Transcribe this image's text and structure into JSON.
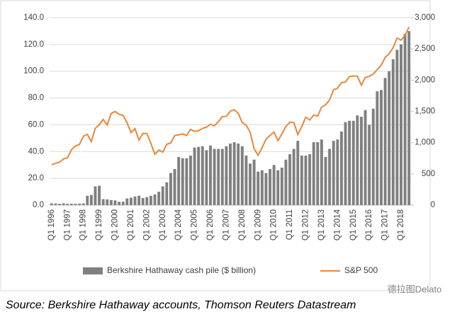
{
  "chart_data": {
    "type": "bar-line",
    "categories": [
      "Q1 1996",
      null,
      null,
      null,
      "Q1 1997",
      null,
      null,
      null,
      "Q1 1998",
      null,
      null,
      null,
      "Q1 1999",
      null,
      null,
      null,
      "Q1 2000",
      null,
      null,
      null,
      "Q1 2001",
      null,
      null,
      null,
      "Q1 2002",
      null,
      null,
      null,
      "Q1 2003",
      null,
      null,
      null,
      "Q1 2004",
      null,
      null,
      null,
      "Q1 2005",
      null,
      null,
      null,
      "Q1 2006",
      null,
      null,
      null,
      "Q1 2007",
      null,
      null,
      null,
      "Q1 2008",
      null,
      null,
      null,
      "Q1 2009",
      null,
      null,
      null,
      "Q1 2010",
      null,
      null,
      null,
      "Q1 2011",
      null,
      null,
      null,
      "Q1 2012",
      null,
      null,
      null,
      "Q1 2013",
      null,
      null,
      null,
      "Q1 2014",
      null,
      null,
      null,
      "Q1 2015",
      null,
      null,
      null,
      "Q1 2016",
      null,
      null,
      null,
      "Q1 2017",
      null,
      null,
      null,
      "Q1 2018",
      null,
      null
    ],
    "series": [
      {
        "name": "Berkshire Hathaway cash pile ($ billion)",
        "color": "#808080",
        "kind": "bar",
        "values": [
          1.3,
          1.2,
          1.0,
          1.3,
          1.0,
          1.1,
          1.0,
          1.1,
          1.3,
          7,
          7.6,
          14,
          14.5,
          4.5,
          4.3,
          3.8,
          3.5,
          2.5,
          2.6,
          5,
          5.5,
          6.5,
          7,
          5.3,
          6,
          7,
          8,
          10,
          14,
          17,
          24,
          27,
          36,
          35,
          35,
          37,
          43,
          43.5,
          44,
          41,
          44.5,
          42,
          42,
          42,
          44,
          46,
          47,
          46,
          44,
          37,
          31,
          34,
          25,
          26,
          24,
          27,
          30,
          26,
          28,
          34,
          38,
          42,
          48,
          37,
          37,
          38,
          47,
          47,
          49,
          36,
          42,
          48,
          49,
          55,
          62,
          63,
          63,
          67,
          66,
          71,
          60,
          72,
          85,
          86,
          95,
          100,
          109,
          116,
          120,
          128,
          130
        ]
      },
      {
        "name": "S&P 500",
        "color": "#e8883a",
        "kind": "line",
        "axis": "y2",
        "values": [
          645,
          670,
          687,
          740,
          757,
          885,
          947,
          970,
          1101,
          1133,
          1017,
          1229,
          1286,
          1372,
          1282,
          1469,
          1498,
          1454,
          1436,
          1320,
          1160,
          1224,
          1040,
          1148,
          1147,
          989,
          815,
          880,
          848,
          975,
          995,
          1112,
          1126,
          1140,
          1114,
          1212,
          1180,
          1191,
          1228,
          1248,
          1295,
          1270,
          1335,
          1418,
          1420,
          1503,
          1527,
          1468,
          1322,
          1280,
          1166,
          903,
          797,
          919,
          1057,
          1115,
          1169,
          1031,
          1141,
          1258,
          1326,
          1321,
          1131,
          1258,
          1408,
          1362,
          1441,
          1426,
          1569,
          1606,
          1682,
          1848,
          1872,
          1960,
          1972,
          2059,
          2068,
          2063,
          1920,
          2044,
          2060,
          2099,
          2168,
          2239,
          2363,
          2423,
          2519,
          2674,
          2641,
          2718,
          2850
        ]
      }
    ],
    "ylim": [
      0,
      140
    ],
    "yticks": [
      {
        "value": 0,
        "label": "0.0"
      },
      {
        "value": 20,
        "label": "20.0"
      },
      {
        "value": 40,
        "label": "40.0"
      },
      {
        "value": 60,
        "label": "60.0"
      },
      {
        "value": 80,
        "label": "80.0"
      },
      {
        "value": 100,
        "label": "100.0"
      },
      {
        "value": 120,
        "label": "120.0"
      },
      {
        "value": 140,
        "label": "140.0"
      }
    ],
    "y2lim": [
      0,
      3000
    ],
    "y2ticks": [
      0,
      500,
      {
        "value": 1000,
        "label": "1,000"
      },
      {
        "value": 1500,
        "label": "1,500"
      },
      {
        "value": 2000,
        "label": "2,000"
      },
      {
        "value": 2500,
        "label": "2,500"
      },
      {
        "value": 3000,
        "label": "3,000"
      }
    ],
    "grid": true,
    "source": "Source: Berkshire Hathaway accounts, Thomson Reuters Datastream",
    "watermark": "德拉图Delato"
  }
}
